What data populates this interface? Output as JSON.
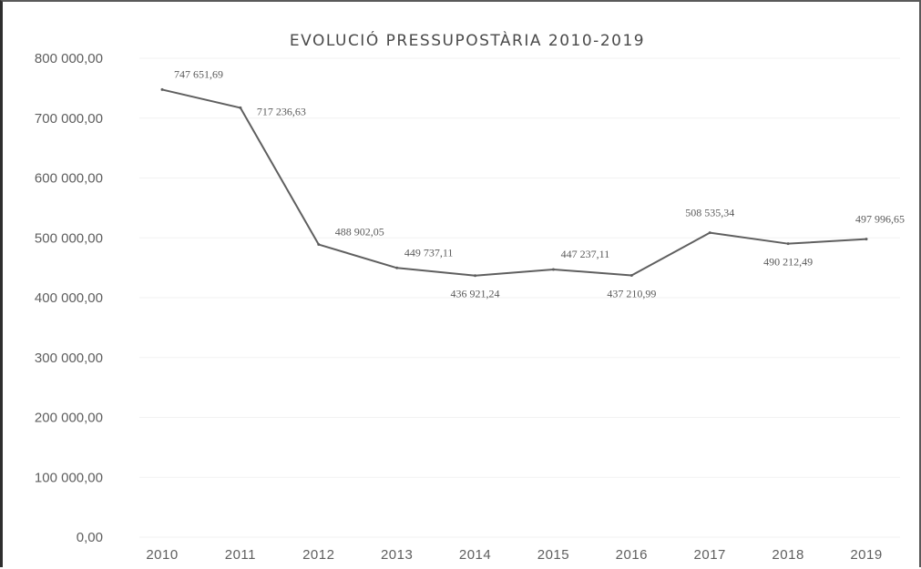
{
  "chart_data": {
    "type": "line",
    "title": "EVOLUCIÓ PRESSUPOSTÀRIA 2010-2019",
    "xlabel": "",
    "ylabel": "",
    "categories": [
      "2010",
      "2011",
      "2012",
      "2013",
      "2014",
      "2015",
      "2016",
      "2017",
      "2018",
      "2019"
    ],
    "series": [
      {
        "values": [
          747651.69,
          717236.63,
          488902.05,
          449737.11,
          436921.24,
          447237.11,
          437210.99,
          508535.34,
          490212.49,
          497996.65
        ]
      }
    ],
    "data_labels": [
      "747 651,69",
      "717 236,63",
      "488 902,05",
      "449 737,11",
      "436 921,24",
      "447 237,11",
      "437 210,99",
      "508 535,34",
      "490 212,49",
      "497 996,65"
    ],
    "y_ticks": [
      0,
      100000,
      200000,
      300000,
      400000,
      500000,
      600000,
      700000,
      800000
    ],
    "y_tick_labels": [
      "0,00",
      "100 000,00",
      "200 000,00",
      "300 000,00",
      "400 000,00",
      "500 000,00",
      "600 000,00",
      "700 000,00",
      "800 000,00"
    ],
    "ylim": [
      0,
      800000
    ],
    "grid": true,
    "legend": "none",
    "line_color": "#5f5f5f"
  }
}
